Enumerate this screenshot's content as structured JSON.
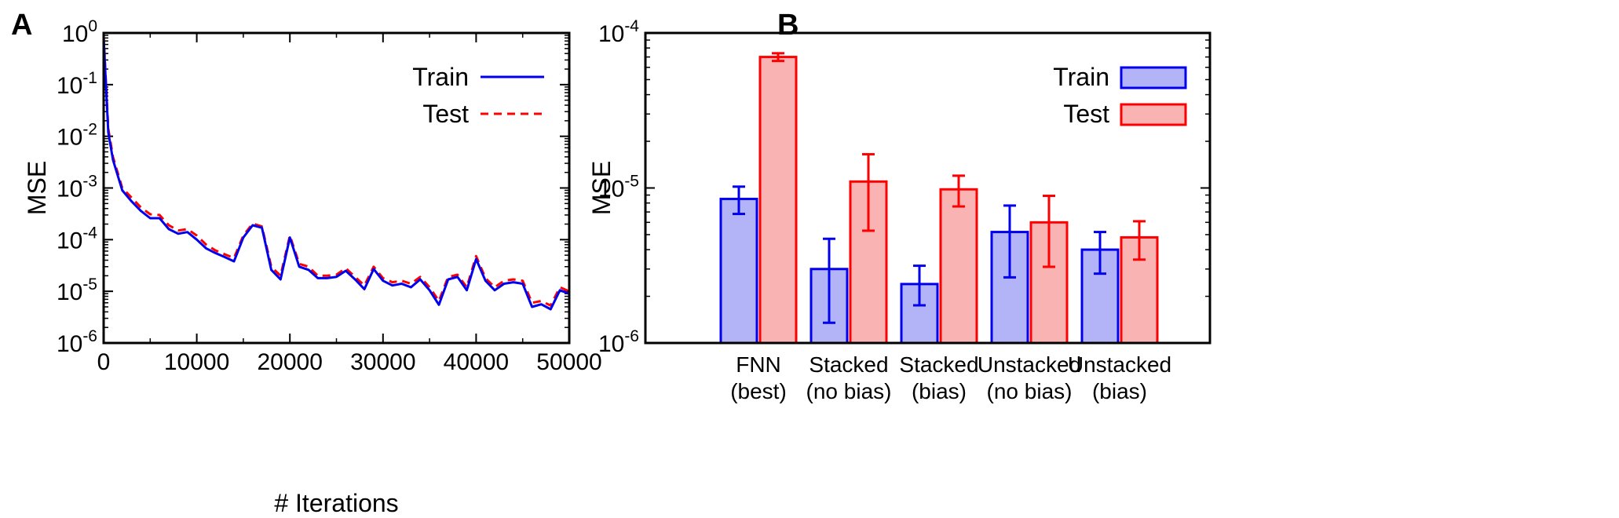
{
  "panels": [
    {
      "letter": "A"
    },
    {
      "letter": "B"
    }
  ],
  "chart_data": [
    {
      "type": "line",
      "xlabel": "# Iterations",
      "ylabel": "MSE",
      "ylog": true,
      "xlim": [
        0,
        50000
      ],
      "ylim": [
        1e-06,
        1
      ],
      "x_ticks": [
        0,
        10000,
        20000,
        30000,
        40000,
        50000
      ],
      "y_ticks": [
        {
          "base": "10",
          "exp": "0",
          "value": 1
        },
        {
          "base": "10",
          "exp": "-1",
          "value": 0.1
        },
        {
          "base": "10",
          "exp": "-2",
          "value": 0.01
        },
        {
          "base": "10",
          "exp": "-3",
          "value": 0.001
        },
        {
          "base": "10",
          "exp": "-4",
          "value": 0.0001
        },
        {
          "base": "10",
          "exp": "-5",
          "value": 1e-05
        },
        {
          "base": "10",
          "exp": "-6",
          "value": 1e-06
        }
      ],
      "grid": false,
      "legend_position": "top-right",
      "series": [
        {
          "name": "Train",
          "style": "solid",
          "color": "#0000ee",
          "x": [
            0,
            500,
            1000,
            2000,
            3000,
            4000,
            5000,
            6000,
            7000,
            8000,
            9000,
            10000,
            11000,
            12000,
            13000,
            14000,
            15000,
            16000,
            17000,
            18000,
            19000,
            20000,
            21000,
            22000,
            23000,
            24000,
            25000,
            26000,
            27000,
            28000,
            29000,
            30000,
            31000,
            32000,
            33000,
            34000,
            35000,
            36000,
            37000,
            38000,
            39000,
            40000,
            41000,
            42000,
            43000,
            44000,
            45000,
            46000,
            47000,
            48000,
            49000,
            50000
          ],
          "y": [
            0.8,
            0.012,
            0.0035,
            0.0009,
            0.00055,
            0.00036,
            0.00026,
            0.00026,
            0.00016,
            0.00013,
            0.00014,
            0.0001,
            6.8e-05,
            5.5e-05,
            4.6e-05,
            3.8e-05,
            0.00011,
            0.00019,
            0.00017,
            2.6e-05,
            1.7e-05,
            0.00011,
            3e-05,
            2.6e-05,
            1.8e-05,
            1.8e-05,
            1.9e-05,
            2.5e-05,
            1.7e-05,
            1.1e-05,
            2.7e-05,
            1.6e-05,
            1.3e-05,
            1.4e-05,
            1.2e-05,
            1.7e-05,
            1.05e-05,
            5.5e-06,
            1.7e-05,
            1.9e-05,
            1.05e-05,
            4.2e-05,
            1.6e-05,
            1.05e-05,
            1.4e-05,
            1.5e-05,
            1.4e-05,
            5e-06,
            5.6e-06,
            4.5e-06,
            1.05e-05,
            9e-06
          ]
        },
        {
          "name": "Test",
          "style": "dashed",
          "color": "#ff0000",
          "x": [
            0,
            500,
            1000,
            2000,
            3000,
            4000,
            5000,
            6000,
            7000,
            8000,
            9000,
            10000,
            11000,
            12000,
            13000,
            14000,
            15000,
            16000,
            17000,
            18000,
            19000,
            20000,
            21000,
            22000,
            23000,
            24000,
            25000,
            26000,
            27000,
            28000,
            29000,
            30000,
            31000,
            32000,
            33000,
            34000,
            35000,
            36000,
            37000,
            38000,
            39000,
            40000,
            41000,
            42000,
            43000,
            44000,
            45000,
            46000,
            47000,
            48000,
            49000,
            50000
          ],
          "y": [
            0.9,
            0.014,
            0.004,
            0.001,
            0.00065,
            0.00042,
            0.00031,
            0.0003,
            0.00019,
            0.00015,
            0.00016,
            0.00012,
            8e-05,
            6.2e-05,
            5.2e-05,
            4.4e-05,
            0.00012,
            0.000205,
            0.00018,
            3e-05,
            2e-05,
            0.00012,
            3.4e-05,
            3e-05,
            2e-05,
            2e-05,
            2.1e-05,
            2.8e-05,
            1.9e-05,
            1.3e-05,
            3e-05,
            1.8e-05,
            1.5e-05,
            1.6e-05,
            1.4e-05,
            1.9e-05,
            1.2e-05,
            6.5e-06,
            1.9e-05,
            2.1e-05,
            1.2e-05,
            4.8e-05,
            1.8e-05,
            1.2e-05,
            1.6e-05,
            1.7e-05,
            1.6e-05,
            6e-06,
            6.5e-06,
            5.3e-06,
            1.2e-05,
            1e-05
          ]
        }
      ]
    },
    {
      "type": "bar",
      "ylabel": "MSE",
      "ylog": true,
      "ylim": [
        1e-06,
        0.0001
      ],
      "y_ticks": [
        {
          "base": "10",
          "exp": "-4",
          "value": 0.0001
        },
        {
          "base": "10",
          "exp": "-5",
          "value": 1e-05
        },
        {
          "base": "10",
          "exp": "-6",
          "value": 1e-06
        }
      ],
      "grid": false,
      "legend_position": "top-right",
      "categories": [
        {
          "line1": "FNN",
          "line2": "(best)"
        },
        {
          "line1": "Stacked",
          "line2": "(no bias)"
        },
        {
          "line1": "Stacked",
          "line2": "(bias)"
        },
        {
          "line1": "Unstacked",
          "line2": "(no bias)"
        },
        {
          "line1": "Unstacked",
          "line2": "(bias)"
        }
      ],
      "series": [
        {
          "name": "Train",
          "edge_color": "#0000ee",
          "fill_color": "#b3b3f7",
          "values": [
            8.5e-06,
            3e-06,
            2.4e-06,
            5.2e-06,
            4e-06
          ],
          "err_low": [
            6.8e-06,
            1.35e-06,
            1.75e-06,
            2.65e-06,
            2.8e-06
          ],
          "err_high": [
            1.02e-05,
            4.7e-06,
            3.15e-06,
            7.7e-06,
            5.2e-06
          ]
        },
        {
          "name": "Test",
          "edge_color": "#ff0000",
          "fill_color": "#f9b3b3",
          "values": [
            7e-05,
            1.1e-05,
            9.8e-06,
            6e-06,
            4.8e-06
          ],
          "err_low": [
            6.6e-05,
            5.3e-06,
            7.6e-06,
            3.1e-06,
            3.45e-06
          ],
          "err_high": [
            7.4e-05,
            1.65e-05,
            1.2e-05,
            8.9e-06,
            6.1e-06
          ]
        }
      ]
    }
  ]
}
